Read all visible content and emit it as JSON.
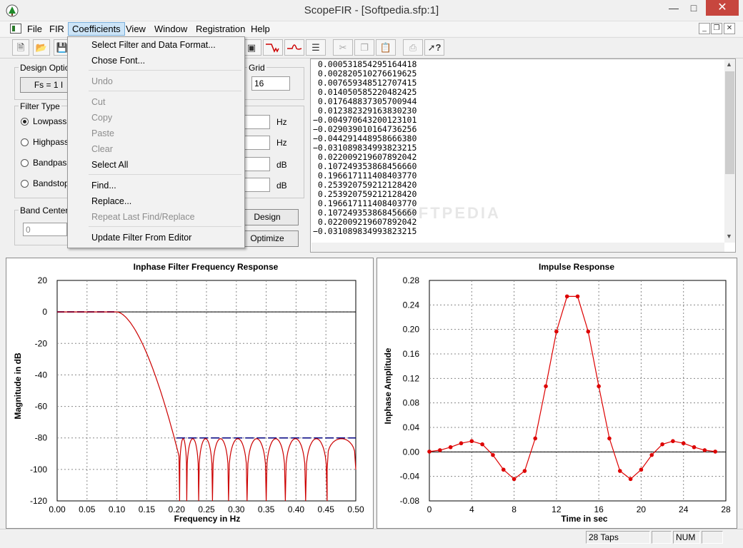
{
  "window": {
    "title": "ScopeFIR - [Softpedia.sfp:1]"
  },
  "menubar": {
    "items": [
      "File",
      "FIR",
      "Coefficients",
      "View",
      "Window",
      "Registration",
      "Help"
    ],
    "active": "Coefficients"
  },
  "coefficients_menu": {
    "items": [
      {
        "label": "Select Filter and Data Format...",
        "enabled": true
      },
      {
        "label": "Chose Font...",
        "enabled": true
      },
      {
        "label": "Undo",
        "enabled": false
      },
      {
        "label": "Cut",
        "enabled": false
      },
      {
        "label": "Copy",
        "enabled": false
      },
      {
        "label": "Paste",
        "enabled": false
      },
      {
        "label": "Clear",
        "enabled": false
      },
      {
        "label": "Select All",
        "enabled": true
      },
      {
        "label": "Find...",
        "enabled": true
      },
      {
        "label": "Replace...",
        "enabled": true
      },
      {
        "label": "Repeat Last Find/Replace",
        "enabled": false
      },
      {
        "label": "Update Filter From Editor",
        "enabled": true
      }
    ]
  },
  "design_panel": {
    "design_options_label": "Design Option",
    "fs_button": "Fs = 1 I",
    "grid_label": "Grid",
    "grid_value": "16",
    "filter_type_label": "Filter Type",
    "filter_types": [
      "Lowpass",
      "Highpass",
      "Bandpass",
      "Bandstop"
    ],
    "selected_filter": "Lowpass",
    "units": [
      "Hz",
      "Hz",
      "dB",
      "dB"
    ],
    "band_center_label": "Band Center",
    "band_center_value": "0",
    "design_button": "Design",
    "optimize_button": "Optimize"
  },
  "coef_editor": {
    "lines": [
      " 0.000531854295164418",
      " 0.002820510276619625",
      " 0.007659348512707415",
      " 0.014050585220482425",
      " 0.017648837305700944",
      " 0.012382329163830230",
      "−0.004970643200123101",
      "−0.029039010164736256",
      "−0.044291448958666380",
      "−0.031089834993823215",
      " 0.022009219607892042",
      " 0.107249353868456660",
      " 0.196617111408403770",
      " 0.253920759212128420",
      " 0.253920759212128420",
      " 0.196617111408403770",
      " 0.107249353868456660",
      " 0.022009219607892042",
      "−0.031089834993823215"
    ]
  },
  "watermark": "SOFTPEDIA",
  "chart_data": [
    {
      "type": "line",
      "title": "Inphase Filter Frequency Response",
      "xlabel": "Frequency in Hz",
      "ylabel": "Magnitude in dB",
      "xlim": [
        0,
        0.5
      ],
      "ylim": [
        -120,
        20
      ],
      "xticks": [
        "0.00",
        "0.05",
        "0.10",
        "0.15",
        "0.20",
        "0.25",
        "0.30",
        "0.35",
        "0.40",
        "0.45",
        "0.50"
      ],
      "yticks": [
        "20",
        "0",
        "-20",
        "-40",
        "-60",
        "-80",
        "-100",
        "-120"
      ],
      "passband_edge": 0.1,
      "stopband_edge": 0.2,
      "stopband_spec_db": -80,
      "nulls": [
        0.205,
        0.217,
        0.237,
        0.26,
        0.287,
        0.318,
        0.35,
        0.382,
        0.416,
        0.452
      ],
      "series": [
        {
          "color": "#cc0000"
        },
        {
          "color": "#000080"
        }
      ],
      "grid": true
    },
    {
      "type": "line",
      "title": "Impulse Response",
      "xlabel": "Time in sec",
      "ylabel": "Inphase Amplitude",
      "xlim": [
        0,
        28
      ],
      "ylim": [
        -0.08,
        0.28
      ],
      "xticks": [
        "0",
        "4",
        "8",
        "12",
        "16",
        "20",
        "24",
        "28"
      ],
      "yticks": [
        "0.28",
        "0.24",
        "0.20",
        "0.16",
        "0.12",
        "0.08",
        "0.04",
        "0.00",
        "-0.04",
        "-0.08"
      ],
      "x": [
        0,
        1,
        2,
        3,
        4,
        5,
        6,
        7,
        8,
        9,
        10,
        11,
        12,
        13,
        14,
        15,
        16,
        17,
        18,
        19,
        20,
        21,
        22,
        23,
        24,
        25,
        26,
        27
      ],
      "values": [
        0.0005,
        0.0028,
        0.0077,
        0.0141,
        0.0176,
        0.0124,
        -0.005,
        -0.029,
        -0.0443,
        -0.0311,
        0.022,
        0.1072,
        0.1966,
        0.2539,
        0.2539,
        0.1966,
        0.1072,
        0.022,
        -0.0311,
        -0.0443,
        -0.029,
        -0.005,
        0.0124,
        0.0176,
        0.0141,
        0.0077,
        0.0028,
        0.0005
      ],
      "series": [
        {
          "color": "#dd0000"
        }
      ],
      "grid": true
    }
  ],
  "statusbar": {
    "taps": "28 Taps",
    "num": "NUM"
  }
}
